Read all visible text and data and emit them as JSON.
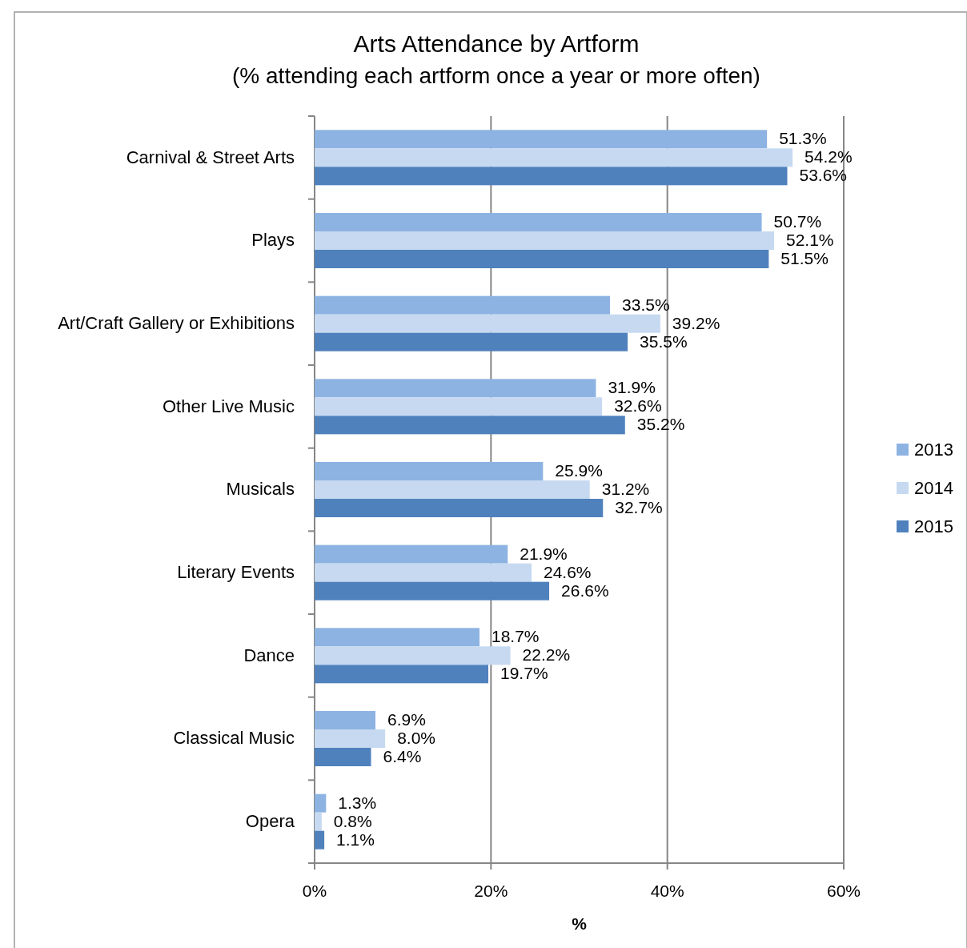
{
  "chart_data": {
    "type": "bar",
    "orientation": "horizontal",
    "title": "Arts Attendance by Artform",
    "subtitle": "(% attending each artform once a year or more often)",
    "xlabel": "%",
    "categories": [
      "Carnival & Street Arts",
      "Plays",
      "Art/Craft Gallery or Exhibitions",
      "Other Live Music",
      "Musicals",
      "Literary Events",
      "Dance",
      "Classical Music",
      "Opera"
    ],
    "series": [
      {
        "name": "2013",
        "color": "#8db3e2",
        "values": [
          51.3,
          50.7,
          33.5,
          31.9,
          25.9,
          21.9,
          18.7,
          6.9,
          1.3
        ],
        "value_labels": [
          "51.3%",
          "50.7%",
          "33.5%",
          "31.9%",
          "25.9%",
          "21.9%",
          "18.7%",
          "6.9%",
          "1.3%"
        ]
      },
      {
        "name": "2014",
        "color": "#c6d9f1",
        "values": [
          54.2,
          52.1,
          39.2,
          32.6,
          31.2,
          24.6,
          22.2,
          8.0,
          0.8
        ],
        "value_labels": [
          "54.2%",
          "52.1%",
          "39.2%",
          "32.6%",
          "31.2%",
          "24.6%",
          "22.2%",
          "8.0%",
          "0.8%"
        ]
      },
      {
        "name": "2015",
        "color": "#4f81bd",
        "values": [
          53.6,
          51.5,
          35.5,
          35.2,
          32.7,
          26.6,
          19.7,
          6.4,
          1.1
        ],
        "value_labels": [
          "53.6%",
          "51.5%",
          "35.5%",
          "35.2%",
          "32.7%",
          "26.6%",
          "19.7%",
          "6.4%",
          "1.1%"
        ]
      }
    ],
    "xlim": [
      0,
      60
    ],
    "xticks": [
      {
        "value": 0,
        "label": "0%"
      },
      {
        "value": 20,
        "label": "20%"
      },
      {
        "value": 40,
        "label": "40%"
      },
      {
        "value": 60,
        "label": "60%"
      }
    ],
    "grid": "x",
    "legend": "right"
  }
}
